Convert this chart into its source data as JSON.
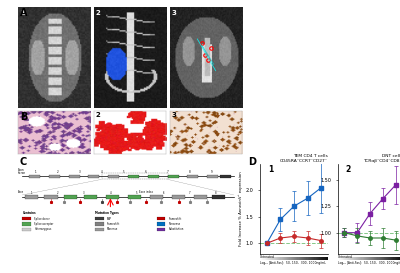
{
  "background_color": "#FFFFFF",
  "panel_A_bg": "#FFFFFF",
  "panel_B_bg": "#FFFFFF",
  "panel_D": {
    "subplot1": {
      "label": "1",
      "title_line1": "TEM CD4 T cells",
      "title_line2": "CD45RA⁻CCR7⁻CD27⁻",
      "ylabel": "Fold Increase % AnnexinV⁺ expression",
      "xlabel_line1": "Log₁₀ [Anti-Fas]:  50, 150,  300, 1000ng/mL",
      "blue_series": {
        "color": "#1565C0",
        "y": [
          1.0,
          1.45,
          1.7,
          1.85,
          2.05
        ],
        "yerr": [
          0.03,
          0.22,
          0.28,
          0.32,
          0.48
        ]
      },
      "red_series": {
        "color": "#C62828",
        "y": [
          1.0,
          1.1,
          1.13,
          1.1,
          1.05
        ],
        "yerr": [
          0.03,
          0.1,
          0.11,
          0.13,
          0.13
        ]
      },
      "green_dashed_color": "#66BB6A",
      "ylim": [
        0.8,
        2.5
      ],
      "yticks": [
        1.0,
        1.5,
        2.0
      ],
      "x_all": [
        0,
        1,
        2,
        3,
        4
      ]
    },
    "subplot2": {
      "label": "2",
      "title_line1": "DNT cells",
      "title_line2": "TCRαβ⁻CD4⁻CD8⁻",
      "xlabel_line1": "Log₁₀ [Anti-Fas]:  50, 150,  300, 1000ng/mL",
      "purple_series": {
        "color": "#7B1FA2",
        "y": [
          1.0,
          1.0,
          1.18,
          1.32,
          1.45
        ],
        "yerr": [
          0.04,
          0.09,
          0.11,
          0.1,
          0.18
        ]
      },
      "green_series": {
        "color": "#2E7D32",
        "y": [
          1.0,
          0.97,
          0.95,
          0.95,
          0.93
        ],
        "yerr": [
          0.04,
          0.07,
          0.07,
          0.09,
          0.09
        ]
      },
      "green_dashed_color": "#66BB6A",
      "ylim": [
        0.8,
        1.65
      ],
      "yticks": [
        1.0,
        1.25,
        1.5
      ],
      "x_all": [
        0,
        1,
        2,
        3,
        4
      ]
    }
  }
}
